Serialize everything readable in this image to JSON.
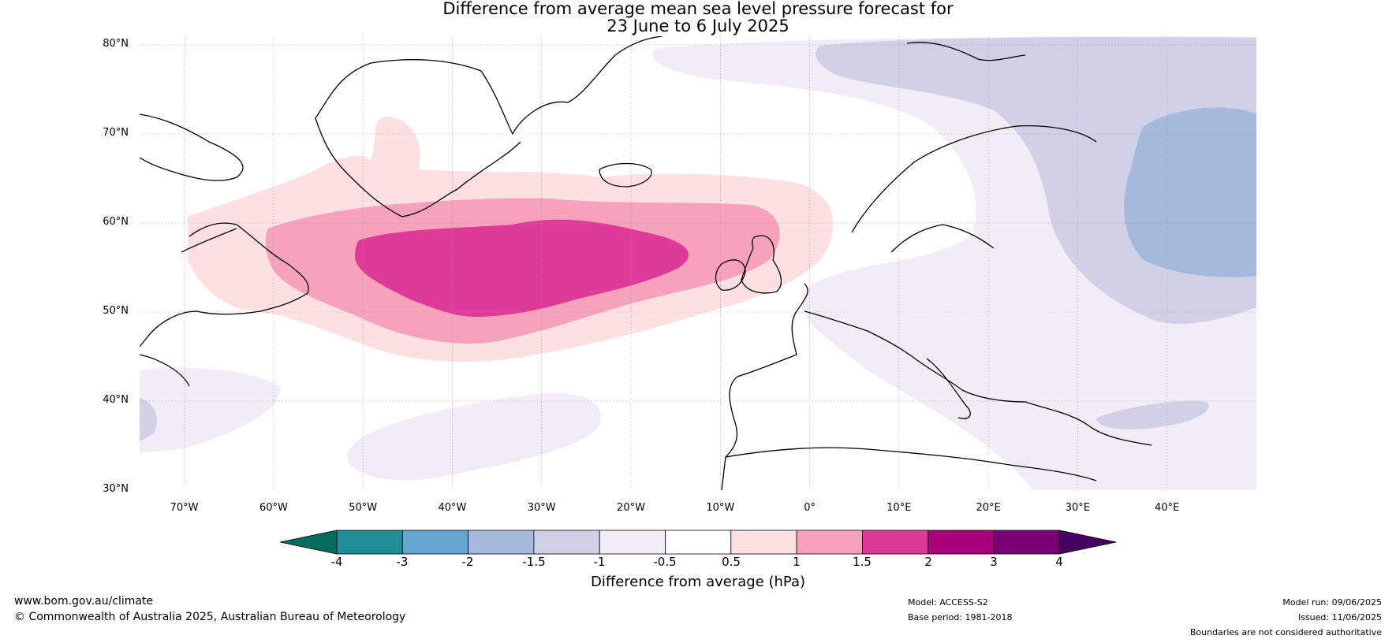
{
  "title_line1": "Difference from average mean sea level pressure forecast for",
  "title_line2": "23 June to 6 July 2025",
  "lat_labels": [
    "80°N",
    "70°N",
    "60°N",
    "50°N",
    "40°N",
    "30°N"
  ],
  "lon_labels": [
    "70°W",
    "60°W",
    "50°W",
    "40°W",
    "30°W",
    "20°W",
    "10°W",
    "0°",
    "10°E",
    "20°E",
    "30°E",
    "40°E"
  ],
  "colorbar": {
    "ticks": [
      "-4",
      "-3",
      "-2",
      "-1.5",
      "-1",
      "-0.5",
      "0.5",
      "1",
      "1.5",
      "2",
      "3",
      "4"
    ],
    "colors": [
      "#1f8e96",
      "#63a7d1",
      "#a5b9dc",
      "#d0d0e6",
      "#f2ecf6",
      "#ffffff",
      "#fde0e1",
      "#f6a2bb",
      "#de3a99",
      "#a9007b",
      "#7a0075"
    ],
    "under_color": "#046c5d",
    "over_color": "#46005e",
    "label": "Difference from average (hPa)"
  },
  "footer": {
    "website": "www.bom.gov.au/climate",
    "copyright": "© Commonwealth of Australia 2025, Australian Bureau of Meteorology",
    "model": "Model: ACCESS-S2",
    "base_period": "Base period: 1981-2018",
    "model_run": "Model run: 09/06/2025",
    "issued": "Issued: 11/06/2025",
    "disclaimer": "Boundaries are not considered authoritative"
  }
}
